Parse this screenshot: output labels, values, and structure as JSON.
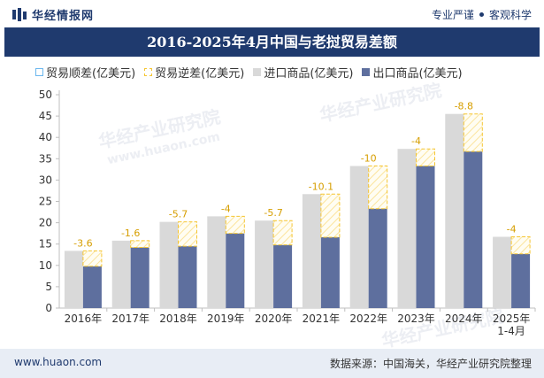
{
  "header": {
    "logo_text": "华经情报网",
    "tagline_left": "专业严谨",
    "tagline_right": "客观科学"
  },
  "title": "2016-2025年4月中国与老挝贸易差额",
  "legend": {
    "surplus": "贸易顺差(亿美元)",
    "deficit": "贸易逆差(亿美元)",
    "import": "进口商品(亿美元)",
    "export": "出口商品(亿美元)"
  },
  "watermark": {
    "text": "华经产业研究院",
    "url": "www.huaon.com"
  },
  "footer": {
    "url": "www.huaon.com",
    "source": "数据来源：中国海关，华经产业研究院整理"
  },
  "colors": {
    "brand": "#1f3a6e",
    "import": "#d9d9d9",
    "export": "#5e6f9e",
    "deficit": "#f5c531",
    "surplus": "#6bb7ee"
  },
  "chart_data": {
    "type": "bar",
    "categories": [
      "2016年",
      "2017年",
      "2018年",
      "2019年",
      "2020年",
      "2021年",
      "2022年",
      "2023年",
      "2024年",
      "2025年\n1-4月"
    ],
    "series": [
      {
        "name": "进口商品(亿美元)",
        "values": [
          13.4,
          15.8,
          20.2,
          21.5,
          20.5,
          26.7,
          33.3,
          37.3,
          45.5,
          16.7
        ]
      },
      {
        "name": "出口商品(亿美元)",
        "values": [
          9.8,
          14.2,
          14.5,
          17.5,
          14.8,
          16.6,
          23.3,
          33.3,
          36.7,
          12.7
        ]
      }
    ],
    "balance": [
      -3.6,
      -1.6,
      -5.7,
      -4,
      -5.7,
      -10.1,
      -10,
      -4,
      -8.8,
      -4
    ],
    "balance_labels": [
      "-3.6",
      "-1.6",
      "-5.7",
      "-4",
      "-5.7",
      "-10.1",
      "-10",
      "-4",
      "-8.8",
      "-4"
    ],
    "y_ticks": [
      "0",
      "5",
      "10",
      "15",
      "20",
      "25",
      "30",
      "35",
      "40",
      "45",
      "50"
    ],
    "ylim": [
      0,
      50
    ],
    "grid": false,
    "legend_position": "top"
  }
}
